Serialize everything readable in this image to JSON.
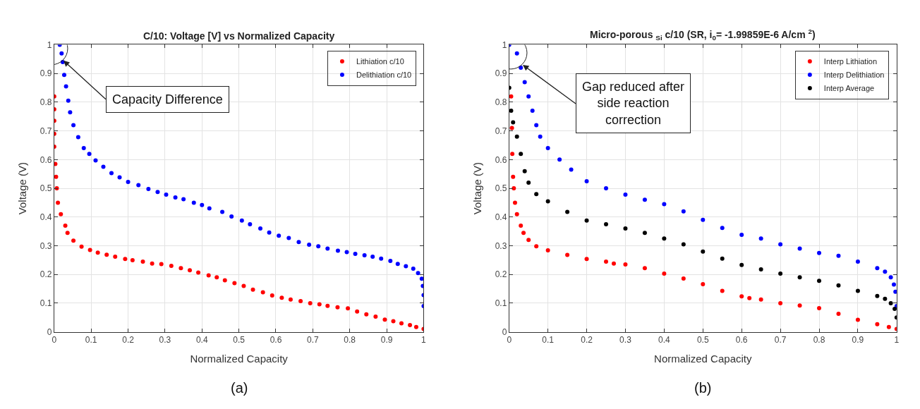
{
  "chart_data": [
    {
      "type": "scatter",
      "title": "C/10: Voltage [V] vs Normalized Capacity",
      "xlabel": "Normalized Capacity",
      "ylabel": "Voltage (V)",
      "xlim": [
        0,
        1
      ],
      "ylim": [
        0,
        1
      ],
      "xticks": [
        0,
        0.1,
        0.2,
        0.3,
        0.4,
        0.5,
        0.6,
        0.7,
        0.8,
        0.9,
        1
      ],
      "yticks": [
        0,
        0.1,
        0.2,
        0.3,
        0.4,
        0.5,
        0.6,
        0.7,
        0.8,
        0.9,
        1
      ],
      "grid": true,
      "legend": "top right",
      "marker": "circle",
      "annotations": [
        {
          "text": "Capacity Difference",
          "x": 0.025,
          "y": 0.945
        },
        "(a)"
      ],
      "series": [
        {
          "name": "Lithiation c/10",
          "color": "#ff0000",
          "x": [
            0.0,
            0.0,
            0.0,
            0.0,
            0.0,
            0.003,
            0.005,
            0.007,
            0.01,
            0.018,
            0.03,
            0.036,
            0.052,
            0.074,
            0.097,
            0.118,
            0.142,
            0.165,
            0.192,
            0.212,
            0.24,
            0.265,
            0.29,
            0.317,
            0.343,
            0.367,
            0.39,
            0.418,
            0.44,
            0.462,
            0.488,
            0.513,
            0.538,
            0.565,
            0.59,
            0.616,
            0.64,
            0.667,
            0.693,
            0.718,
            0.74,
            0.767,
            0.795,
            0.82,
            0.845,
            0.87,
            0.895,
            0.918,
            0.94,
            0.963,
            0.98,
            1.0
          ],
          "values": [
            0.82,
            0.775,
            0.735,
            0.69,
            0.645,
            0.585,
            0.54,
            0.5,
            0.45,
            0.41,
            0.37,
            0.345,
            0.318,
            0.297,
            0.285,
            0.276,
            0.269,
            0.262,
            0.254,
            0.25,
            0.245,
            0.238,
            0.236,
            0.23,
            0.222,
            0.215,
            0.207,
            0.197,
            0.19,
            0.18,
            0.17,
            0.16,
            0.147,
            0.138,
            0.127,
            0.119,
            0.113,
            0.107,
            0.1,
            0.096,
            0.091,
            0.086,
            0.082,
            0.071,
            0.061,
            0.053,
            0.043,
            0.037,
            0.03,
            0.024,
            0.017,
            0.01
          ]
        },
        {
          "name": "Delithiation c/10",
          "color": "#0000ff",
          "x": [
            0.015,
            0.02,
            0.023,
            0.027,
            0.032,
            0.038,
            0.043,
            0.052,
            0.065,
            0.08,
            0.095,
            0.112,
            0.133,
            0.155,
            0.177,
            0.2,
            0.228,
            0.255,
            0.28,
            0.303,
            0.328,
            0.35,
            0.378,
            0.4,
            0.42,
            0.455,
            0.48,
            0.508,
            0.53,
            0.558,
            0.582,
            0.608,
            0.635,
            0.662,
            0.69,
            0.715,
            0.74,
            0.768,
            0.792,
            0.815,
            0.84,
            0.862,
            0.885,
            0.91,
            0.93,
            0.952,
            0.972,
            0.985,
            0.995,
            0.998,
            1.0,
            1.0
          ],
          "values": [
            1.0,
            0.97,
            0.94,
            0.895,
            0.855,
            0.805,
            0.765,
            0.72,
            0.678,
            0.64,
            0.62,
            0.597,
            0.575,
            0.553,
            0.538,
            0.522,
            0.511,
            0.498,
            0.487,
            0.478,
            0.468,
            0.462,
            0.45,
            0.442,
            0.43,
            0.418,
            0.402,
            0.388,
            0.375,
            0.36,
            0.346,
            0.335,
            0.327,
            0.313,
            0.304,
            0.298,
            0.29,
            0.283,
            0.278,
            0.272,
            0.267,
            0.262,
            0.255,
            0.247,
            0.237,
            0.229,
            0.22,
            0.205,
            0.185,
            0.16,
            0.128,
            0.09
          ]
        }
      ]
    },
    {
      "type": "scatter",
      "title": "Micro-porous $_{Si}$ c/10 (SR, i$_{0}$= -1.99859E-6 A/cm $^{2}$)",
      "xlabel": "Normalized Capacity",
      "ylabel": "Voltage (V)",
      "xlim": [
        0,
        1
      ],
      "ylim": [
        0,
        1
      ],
      "xticks": [
        0,
        0.1,
        0.2,
        0.3,
        0.4,
        0.5,
        0.6,
        0.7,
        0.8,
        0.9,
        1
      ],
      "yticks": [
        0,
        0.1,
        0.2,
        0.3,
        0.4,
        0.5,
        0.6,
        0.7,
        0.8,
        0.9,
        1
      ],
      "grid": true,
      "legend": "top right",
      "marker": "circle",
      "annotations": [
        {
          "text": "Gap reduced after\nside reaction\ncorrection",
          "x": 0.035,
          "y": 0.93
        },
        "(b)"
      ],
      "series": [
        {
          "name": "Interp Lithiation",
          "color": "#ff0000",
          "x": [
            0.005,
            0.007,
            0.008,
            0.01,
            0.012,
            0.015,
            0.02,
            0.03,
            0.037,
            0.05,
            0.07,
            0.1,
            0.15,
            0.2,
            0.25,
            0.27,
            0.3,
            0.35,
            0.4,
            0.45,
            0.5,
            0.55,
            0.6,
            0.62,
            0.65,
            0.7,
            0.75,
            0.8,
            0.85,
            0.9,
            0.95,
            0.98,
            1.0
          ],
          "values": [
            0.82,
            0.71,
            0.62,
            0.54,
            0.5,
            0.45,
            0.41,
            0.37,
            0.345,
            0.32,
            0.298,
            0.284,
            0.268,
            0.254,
            0.245,
            0.238,
            0.235,
            0.222,
            0.203,
            0.186,
            0.166,
            0.143,
            0.124,
            0.118,
            0.113,
            0.1,
            0.092,
            0.083,
            0.063,
            0.042,
            0.027,
            0.017,
            0.01
          ]
        },
        {
          "name": "Interp Delithiation",
          "color": "#0000ff",
          "x": [
            0.0,
            0.02,
            0.03,
            0.04,
            0.05,
            0.06,
            0.07,
            0.08,
            0.1,
            0.13,
            0.16,
            0.2,
            0.25,
            0.3,
            0.35,
            0.4,
            0.45,
            0.5,
            0.55,
            0.6,
            0.65,
            0.7,
            0.75,
            0.8,
            0.85,
            0.9,
            0.95,
            0.97,
            0.985,
            0.993,
            0.997,
            1.0
          ],
          "values": [
            1.0,
            0.97,
            0.92,
            0.87,
            0.82,
            0.77,
            0.72,
            0.68,
            0.64,
            0.6,
            0.565,
            0.525,
            0.5,
            0.478,
            0.46,
            0.445,
            0.42,
            0.39,
            0.362,
            0.338,
            0.325,
            0.305,
            0.29,
            0.275,
            0.265,
            0.245,
            0.222,
            0.21,
            0.19,
            0.165,
            0.14,
            0.09
          ]
        },
        {
          "name": "Interp Average",
          "color": "#000000",
          "x": [
            0.0,
            0.005,
            0.01,
            0.02,
            0.03,
            0.04,
            0.05,
            0.07,
            0.1,
            0.15,
            0.2,
            0.25,
            0.3,
            0.35,
            0.4,
            0.45,
            0.5,
            0.55,
            0.6,
            0.65,
            0.7,
            0.75,
            0.8,
            0.85,
            0.9,
            0.95,
            0.97,
            0.985,
            0.995,
            1.0
          ],
          "values": [
            0.85,
            0.77,
            0.73,
            0.68,
            0.62,
            0.56,
            0.52,
            0.48,
            0.455,
            0.418,
            0.388,
            0.375,
            0.36,
            0.345,
            0.325,
            0.305,
            0.28,
            0.255,
            0.233,
            0.218,
            0.203,
            0.19,
            0.178,
            0.162,
            0.143,
            0.125,
            0.115,
            0.1,
            0.08,
            0.05
          ]
        }
      ]
    }
  ]
}
